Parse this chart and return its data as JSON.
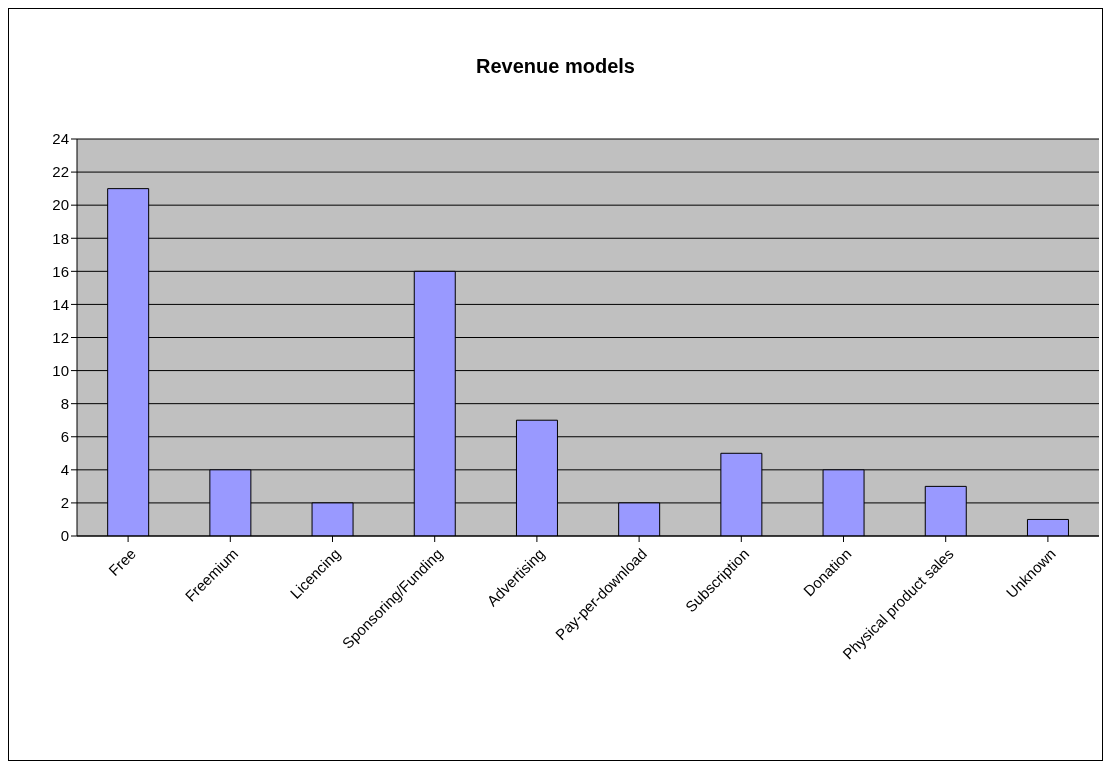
{
  "chart_data": {
    "type": "bar",
    "title": "Revenue models",
    "categories": [
      "Free",
      "Freemium",
      "Licencing",
      "Sponsoring/Funding",
      "Advertising",
      "Pay-per-download",
      "Subscription",
      "Donation",
      "Physical product sales",
      "Unknown"
    ],
    "values": [
      21,
      4,
      2,
      16,
      7,
      2,
      5,
      4,
      3,
      1
    ],
    "color": "#9999ff",
    "ylim": [
      0,
      24
    ],
    "yticks": [
      0,
      2,
      4,
      6,
      8,
      10,
      12,
      14,
      16,
      18,
      20,
      22,
      24
    ],
    "grid": "y"
  }
}
